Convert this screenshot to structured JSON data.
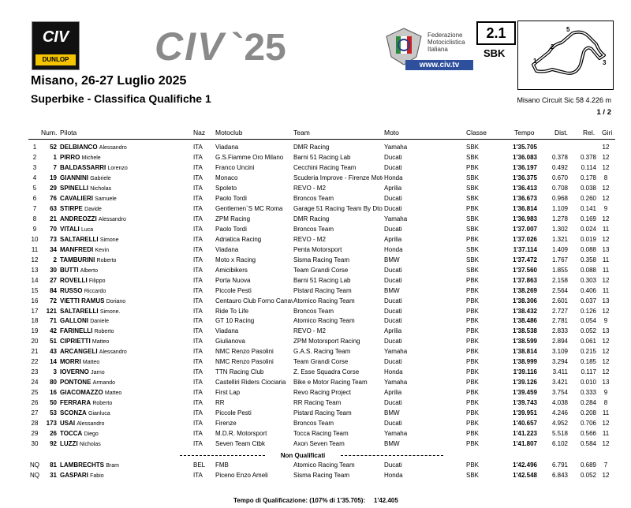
{
  "header": {
    "logo_text": "CIV",
    "logo_sponsor": "DUNLOP",
    "brand": "CIV",
    "brand_year": "`25",
    "federation": [
      "Federazione",
      "Motociclistica",
      "Italiana"
    ],
    "website": "www.civ.tv",
    "session": "2.1",
    "class": "SBK",
    "track_labels": [
      "5",
      "2",
      "1",
      "3"
    ],
    "title": "Misano, 26-27 Luglio 2025",
    "subtitle": "Superbike - Classifica Qualifiche 1",
    "circuit": "Misano Circuit Sic 58 4.226 m",
    "page": "1 / 2"
  },
  "table": {
    "columns": [
      "Num.",
      "Pilota",
      "Naz",
      "Motoclub",
      "Team",
      "Moto",
      "Classe",
      "Tempo",
      "Dist.",
      "Rel.",
      "Giri"
    ],
    "rows": [
      {
        "pos": "1",
        "num": "52",
        "surname": "DELBIANCO",
        "name": "Alessandro",
        "naz": "ITA",
        "motoclub": "Viadana",
        "team": "DMR Racing",
        "moto": "Yamaha",
        "classe": "SBK",
        "tempo": "1'35.705",
        "giri": "12"
      },
      {
        "pos": "2",
        "num": "1",
        "surname": "PIRRO",
        "name": "Michele",
        "naz": "ITA",
        "motoclub": "G.S.Fiamme Oro Milano",
        "team": "Barni 51 Racing Lab",
        "moto": "Ducati",
        "classe": "SBK",
        "tempo": "1'36.083",
        "dist": "0.378",
        "rel": "0.378",
        "giri": "12"
      },
      {
        "pos": "3",
        "num": "7",
        "surname": "BALDASSARRI",
        "name": "Lorenzo",
        "naz": "ITA",
        "motoclub": "Franco Uncini",
        "team": "Cecchini Racing Team",
        "moto": "Ducati",
        "classe": "PBK",
        "tempo": "1'36.197",
        "dist": "0.492",
        "rel": "0.114",
        "giri": "12"
      },
      {
        "pos": "4",
        "num": "19",
        "surname": "GIANNINI",
        "name": "Gabriele",
        "naz": "ITA",
        "motoclub": "Monaco",
        "team": "Scuderia Improve - Firenze Motor",
        "moto": "Honda",
        "classe": "SBK",
        "tempo": "1'36.375",
        "dist": "0.670",
        "rel": "0.178",
        "giri": "8"
      },
      {
        "pos": "5",
        "num": "29",
        "surname": "SPINELLI",
        "name": "Nicholas",
        "naz": "ITA",
        "motoclub": "Spoleto",
        "team": "REVO - M2",
        "moto": "Aprilia",
        "classe": "SBK",
        "tempo": "1'36.413",
        "dist": "0.708",
        "rel": "0.038",
        "giri": "12"
      },
      {
        "pos": "6",
        "num": "76",
        "surname": "CAVALIERI",
        "name": "Samuele",
        "naz": "ITA",
        "motoclub": "Paolo Tordi",
        "team": "Broncos Team",
        "moto": "Ducati",
        "classe": "SBK",
        "tempo": "1'36.673",
        "dist": "0.968",
        "rel": "0.260",
        "giri": "12"
      },
      {
        "pos": "7",
        "num": "63",
        "surname": "STIRPE",
        "name": "Davide",
        "naz": "ITA",
        "motoclub": "Gentlemen`S MC Roma",
        "team": "Garage 51 Racing Team By Dto",
        "moto": "Ducati",
        "classe": "PBK",
        "tempo": "1'36.814",
        "dist": "1.109",
        "rel": "0.141",
        "giri": "9"
      },
      {
        "pos": "8",
        "num": "21",
        "surname": "ANDREOZZI",
        "name": "Alessandro",
        "naz": "ITA",
        "motoclub": "ZPM Racing",
        "team": "DMR Racing",
        "moto": "Yamaha",
        "classe": "SBK",
        "tempo": "1'36.983",
        "dist": "1.278",
        "rel": "0.169",
        "giri": "12"
      },
      {
        "pos": "9",
        "num": "70",
        "surname": "VITALI",
        "name": "Luca",
        "naz": "ITA",
        "motoclub": "Paolo Tordi",
        "team": "Broncos Team",
        "moto": "Ducati",
        "classe": "SBK",
        "tempo": "1'37.007",
        "dist": "1.302",
        "rel": "0.024",
        "giri": "11"
      },
      {
        "pos": "10",
        "num": "73",
        "surname": "SALTARELLI",
        "name": "Simone",
        "naz": "ITA",
        "motoclub": "Adriatica Racing",
        "team": "REVO - M2",
        "moto": "Aprilia",
        "classe": "PBK",
        "tempo": "1'37.026",
        "dist": "1.321",
        "rel": "0.019",
        "giri": "12"
      },
      {
        "pos": "11",
        "num": "34",
        "surname": "MANFREDI",
        "name": "Kevin",
        "naz": "ITA",
        "motoclub": "Viadana",
        "team": "Penta Motorsport",
        "moto": "Honda",
        "classe": "SBK",
        "tempo": "1'37.114",
        "dist": "1.409",
        "rel": "0.088",
        "giri": "13"
      },
      {
        "pos": "12",
        "num": "2",
        "surname": "TAMBURINI",
        "name": "Roberto",
        "naz": "ITA",
        "motoclub": "Moto x Racing",
        "team": "Sisma Racing Team",
        "moto": "BMW",
        "classe": "SBK",
        "tempo": "1'37.472",
        "dist": "1.767",
        "rel": "0.358",
        "giri": "11"
      },
      {
        "pos": "13",
        "num": "30",
        "surname": "BUTTI",
        "name": "Alberto",
        "naz": "ITA",
        "motoclub": "Amicibikers",
        "team": "Team Grandi Corse",
        "moto": "Ducati",
        "classe": "SBK",
        "tempo": "1'37.560",
        "dist": "1.855",
        "rel": "0.088",
        "giri": "11"
      },
      {
        "pos": "14",
        "num": "27",
        "surname": "ROVELLI",
        "name": "Filippo",
        "naz": "ITA",
        "motoclub": "Porta Nuova",
        "team": "Barni 51 Racing Lab",
        "moto": "Ducati",
        "classe": "PBK",
        "tempo": "1'37.863",
        "dist": "2.158",
        "rel": "0.303",
        "giri": "12"
      },
      {
        "pos": "15",
        "num": "84",
        "surname": "RUSSO",
        "name": "Riccardo",
        "naz": "ITA",
        "motoclub": "Piccole Pesti",
        "team": "Pistard Racing Team",
        "moto": "BMW",
        "classe": "PBK",
        "tempo": "1'38.269",
        "dist": "2.564",
        "rel": "0.406",
        "giri": "11"
      },
      {
        "pos": "16",
        "num": "72",
        "surname": "VIETTI RAMUS",
        "name": "Doriano",
        "naz": "ITA",
        "motoclub": "Centauro Club Forno Canaver",
        "team": "Atomico Racing Team",
        "moto": "Ducati",
        "classe": "PBK",
        "tempo": "1'38.306",
        "dist": "2.601",
        "rel": "0.037",
        "giri": "13"
      },
      {
        "pos": "17",
        "num": "121",
        "surname": "SALTARELLI",
        "name": "Simone.",
        "naz": "ITA",
        "motoclub": "Ride To Life",
        "team": "Broncos Team",
        "moto": "Ducati",
        "classe": "PBK",
        "tempo": "1'38.432",
        "dist": "2.727",
        "rel": "0.126",
        "giri": "12"
      },
      {
        "pos": "18",
        "num": "71",
        "surname": "GALLONI",
        "name": "Daniele",
        "naz": "ITA",
        "motoclub": "GT 10 Racing",
        "team": "Atomico Racing Team",
        "moto": "Ducati",
        "classe": "PBK",
        "tempo": "1'38.486",
        "dist": "2.781",
        "rel": "0.054",
        "giri": "9"
      },
      {
        "pos": "19",
        "num": "42",
        "surname": "FARINELLI",
        "name": "Roberto",
        "naz": "ITA",
        "motoclub": "Viadana",
        "team": "REVO - M2",
        "moto": "Aprilia",
        "classe": "PBK",
        "tempo": "1'38.538",
        "dist": "2.833",
        "rel": "0.052",
        "giri": "13"
      },
      {
        "pos": "20",
        "num": "51",
        "surname": "CIPRIETTI",
        "name": "Matteo",
        "naz": "ITA",
        "motoclub": "Giulianova",
        "team": "ZPM Motorsport Racing",
        "moto": "Ducati",
        "classe": "PBK",
        "tempo": "1'38.599",
        "dist": "2.894",
        "rel": "0.061",
        "giri": "12"
      },
      {
        "pos": "21",
        "num": "43",
        "surname": "ARCANGELI",
        "name": "Alessandro",
        "naz": "ITA",
        "motoclub": "NMC Renzo Pasolini",
        "team": "G.A.S. Racing Team",
        "moto": "Yamaha",
        "classe": "PBK",
        "tempo": "1'38.814",
        "dist": "3.109",
        "rel": "0.215",
        "giri": "12"
      },
      {
        "pos": "22",
        "num": "14",
        "surname": "MORRI",
        "name": "Matteo",
        "naz": "ITA",
        "motoclub": "NMC Renzo Pasolini",
        "team": "Team Grandi Corse",
        "moto": "Ducati",
        "classe": "PBK",
        "tempo": "1'38.999",
        "dist": "3.294",
        "rel": "0.185",
        "giri": "12"
      },
      {
        "pos": "23",
        "num": "3",
        "surname": "IOVERNO",
        "name": "Jarno",
        "naz": "ITA",
        "motoclub": "TTN Racing Club",
        "team": "Z. Esse Squadra Corse",
        "moto": "Honda",
        "classe": "PBK",
        "tempo": "1'39.116",
        "dist": "3.411",
        "rel": "0.117",
        "giri": "12"
      },
      {
        "pos": "24",
        "num": "80",
        "surname": "PONTONE",
        "name": "Armando",
        "naz": "ITA",
        "motoclub": "Castelliri Riders Ciociaria",
        "team": "Bike e Motor Racing Team",
        "moto": "Yamaha",
        "classe": "PBK",
        "tempo": "1'39.126",
        "dist": "3.421",
        "rel": "0.010",
        "giri": "13"
      },
      {
        "pos": "25",
        "num": "16",
        "surname": "GIACOMAZZO",
        "name": "Matteo",
        "naz": "ITA",
        "motoclub": "First Lap",
        "team": "Revo Racing Project",
        "moto": "Aprilia",
        "classe": "PBK",
        "tempo": "1'39.459",
        "dist": "3.754",
        "rel": "0.333",
        "giri": "9"
      },
      {
        "pos": "26",
        "num": "50",
        "surname": "FERRARA",
        "name": "Roberto",
        "naz": "ITA",
        "motoclub": "RR",
        "team": "RR Racing Team",
        "moto": "Ducati",
        "classe": "PBK",
        "tempo": "1'39.743",
        "dist": "4.038",
        "rel": "0.284",
        "giri": "8"
      },
      {
        "pos": "27",
        "num": "53",
        "surname": "SCONZA",
        "name": "Gianluca",
        "naz": "ITA",
        "motoclub": "Piccole Pesti",
        "team": "Pistard Racing Team",
        "moto": "BMW",
        "classe": "PBK",
        "tempo": "1'39.951",
        "dist": "4.246",
        "rel": "0.208",
        "giri": "11"
      },
      {
        "pos": "28",
        "num": "173",
        "surname": "USAI",
        "name": "Alessandro",
        "naz": "ITA",
        "motoclub": "Firenze",
        "team": "Broncos Team",
        "moto": "Ducati",
        "classe": "PBK",
        "tempo": "1'40.657",
        "dist": "4.952",
        "rel": "0.706",
        "giri": "12"
      },
      {
        "pos": "29",
        "num": "26",
        "surname": "TOCCA",
        "name": "Diego",
        "naz": "ITA",
        "motoclub": "M.D.R. Motorsport",
        "team": "Tocca Racing Team",
        "moto": "Yamaha",
        "classe": "PBK",
        "tempo": "1'41.223",
        "dist": "5.518",
        "rel": "0.566",
        "giri": "11"
      },
      {
        "pos": "30",
        "num": "92",
        "surname": "LUZZI",
        "name": "Nicholas",
        "naz": "ITA",
        "motoclub": "Seven Team Ctbk",
        "team": "Axon Seven Team",
        "moto": "BMW",
        "classe": "PBK",
        "tempo": "1'41.807",
        "dist": "6.102",
        "rel": "0.584",
        "giri": "12"
      }
    ],
    "separator": "Non Qualificati",
    "nq_rows": [
      {
        "pos": "NQ",
        "num": "81",
        "surname": "LAMBRECHTS",
        "name": "Bram",
        "naz": "BEL",
        "motoclub": "FMB",
        "team": "Atomico Racing Team",
        "moto": "Ducati",
        "classe": "PBK",
        "tempo": "1'42.496",
        "dist": "6.791",
        "rel": "0.689",
        "giri": "7"
      },
      {
        "pos": "NQ",
        "num": "31",
        "surname": "GASPARI",
        "name": "Fabio",
        "naz": "ITA",
        "motoclub": "Piceno Enzo Ameli",
        "team": "Sisma Racing Team",
        "moto": "Honda",
        "classe": "SBK",
        "tempo": "1'42.548",
        "dist": "6.843",
        "rel": "0.052",
        "giri": "12"
      }
    ]
  },
  "footer": {
    "label": "Tempo di Qualificazione: (107% di 1'35.705):",
    "value": "1'42.405"
  }
}
